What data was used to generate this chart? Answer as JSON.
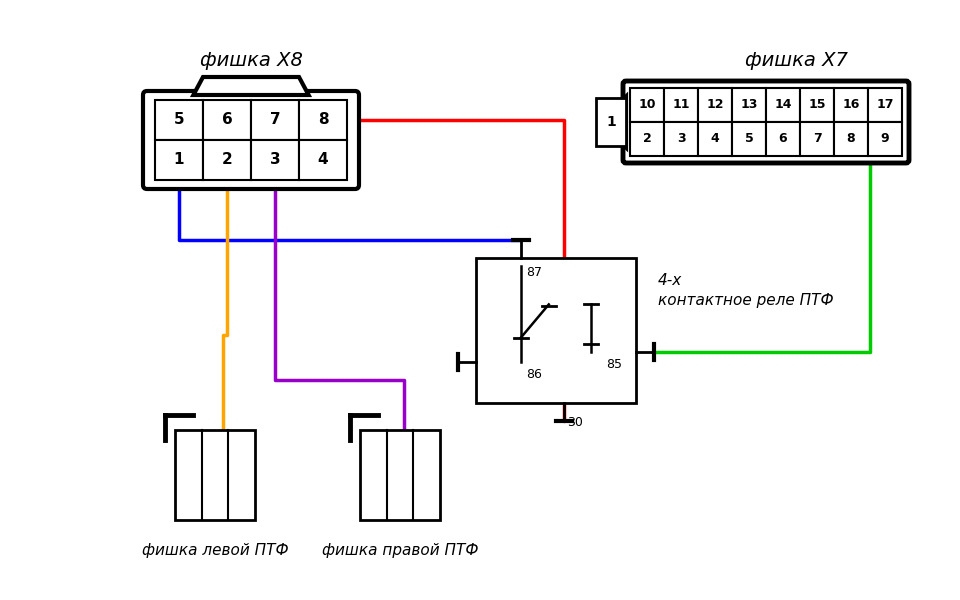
{
  "background_color": "#ffffff",
  "x8_label": "фишка X8",
  "x7_label": "фишка X7",
  "relay_label_line1": "4-х",
  "relay_label_line2": "контактное реле ПТФ",
  "left_fog_label": "фишка левой ПТФ",
  "right_fog_label": "фишка правой ПТФ",
  "x8_rows": [
    [
      "5",
      "6",
      "7",
      "8"
    ],
    [
      "1",
      "2",
      "3",
      "4"
    ]
  ],
  "x7_top": [
    "10",
    "11",
    "12",
    "13",
    "14",
    "15",
    "16",
    "17"
  ],
  "x7_bot": [
    "2",
    "3",
    "4",
    "5",
    "6",
    "7",
    "8",
    "9"
  ],
  "x7_left": "1",
  "relay_pin_labels": [
    "87",
    "86",
    "85",
    "30"
  ],
  "wire_colors": {
    "red": "#ff0000",
    "blue": "#0000ff",
    "orange": "#ffa500",
    "purple": "#9900cc",
    "green": "#00cc00"
  },
  "lw": 2.5
}
